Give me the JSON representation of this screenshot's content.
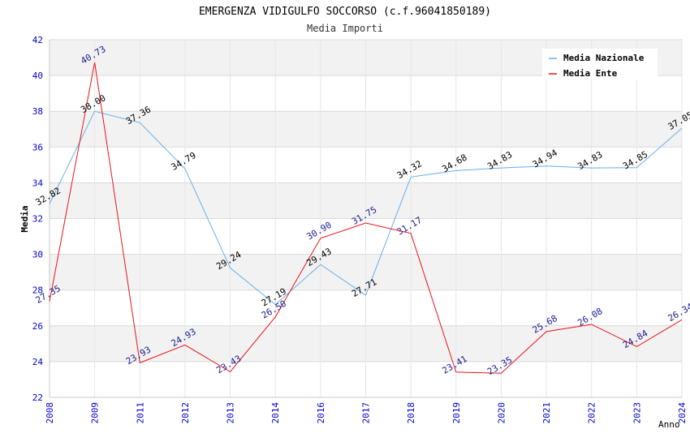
{
  "chart_data": {
    "type": "line",
    "title": "EMERGENZA VIDIGULFO SOCCORSO (c.f.96041850189)",
    "subtitle": "Media Importi",
    "xlabel": "Anno",
    "ylabel": "Media",
    "ylim": [
      22,
      42
    ],
    "ytick_step": 2,
    "yticks": [
      "22",
      "24",
      "26",
      "28",
      "30",
      "32",
      "34",
      "36",
      "38",
      "40",
      "42"
    ],
    "categories": [
      "2008",
      "2009",
      "2011",
      "2012",
      "2013",
      "2014",
      "2016",
      "2017",
      "2018",
      "2019",
      "2020",
      "2021",
      "2022",
      "2023",
      "2024"
    ],
    "legend_position": "top-right",
    "series": [
      {
        "name": "Media Nazionale",
        "color": "#6aaee8",
        "label_color": "#000000",
        "values": [
          32.82,
          38.0,
          37.36,
          34.79,
          29.24,
          27.19,
          29.43,
          27.71,
          34.32,
          34.68,
          34.83,
          34.94,
          34.83,
          34.85,
          37.05
        ],
        "labels": [
          "32.82",
          "38.00",
          "37.36",
          "34.79",
          "29.24",
          "27.19",
          "29.43",
          "27.71",
          "34.32",
          "34.68",
          "34.83",
          "34.94",
          "34.83",
          "34.85",
          "37.05"
        ]
      },
      {
        "name": "Media Ente",
        "color": "#e8141c",
        "label_color": "#1c1c8c",
        "values": [
          27.35,
          40.73,
          23.93,
          24.93,
          23.43,
          26.5,
          30.9,
          31.75,
          31.17,
          23.41,
          23.35,
          25.68,
          26.08,
          24.84,
          26.34
        ],
        "labels": [
          "27.35",
          "40.73",
          "23.93",
          "24.93",
          "23.43",
          "26.50",
          "30.90",
          "31.75",
          "31.17",
          "23.41",
          "23.35",
          "25.68",
          "26.08",
          "24.84",
          "26.34"
        ]
      }
    ]
  }
}
